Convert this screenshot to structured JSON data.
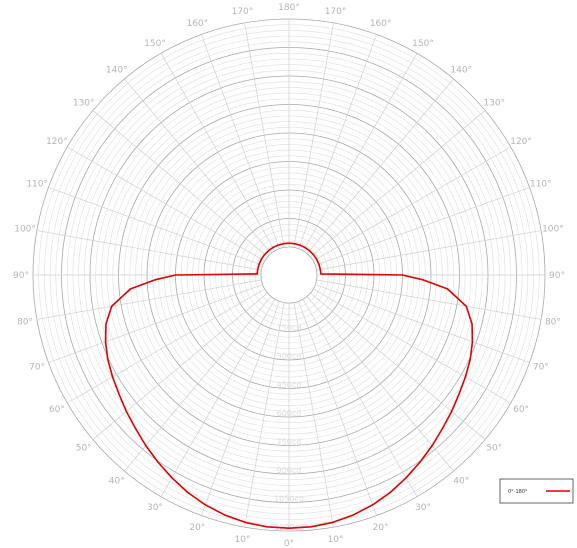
{
  "chart_data": {
    "type": "polar-line",
    "title": "",
    "angle_unit": "deg",
    "angle_labels": [
      "0°",
      "10°",
      "20°",
      "30°",
      "40°",
      "50°",
      "60°",
      "70°",
      "80°",
      "90°",
      "100°",
      "110°",
      "120°",
      "130°",
      "140°",
      "150°",
      "160°",
      "170°",
      "180°",
      "170°",
      "160°",
      "150°",
      "140°",
      "130°",
      "120°",
      "110°",
      "100°",
      "90°",
      "80°",
      "70°",
      "60°",
      "50°",
      "40°",
      "30°",
      "20°",
      "10°"
    ],
    "radial_labels": [
      "150cd",
      "300cd",
      "450cd",
      "600cd",
      "750cd",
      "900cd",
      "1050cd",
      "1200cd"
    ],
    "radial_max": 1200,
    "grid": true,
    "legend_position": "bottom-right",
    "series": [
      {
        "name": "0°-180°",
        "color": "#e00000",
        "angles": [
          0,
          5,
          10,
          15,
          20,
          25,
          30,
          35,
          40,
          45,
          50,
          55,
          60,
          65,
          70,
          75,
          80,
          85,
          88,
          90,
          92,
          95,
          100,
          110,
          120,
          130,
          140,
          150,
          160,
          170,
          180
        ],
        "values": [
          1185,
          1183,
          1175,
          1160,
          1140,
          1115,
          1085,
          1055,
          1025,
          995,
          970,
          945,
          925,
          905,
          880,
          850,
          800,
          690,
          555,
          450,
          20,
          20,
          20,
          20,
          20,
          20,
          20,
          20,
          20,
          20,
          20
        ]
      }
    ]
  },
  "legend": {
    "series_label": "0°-180°"
  }
}
